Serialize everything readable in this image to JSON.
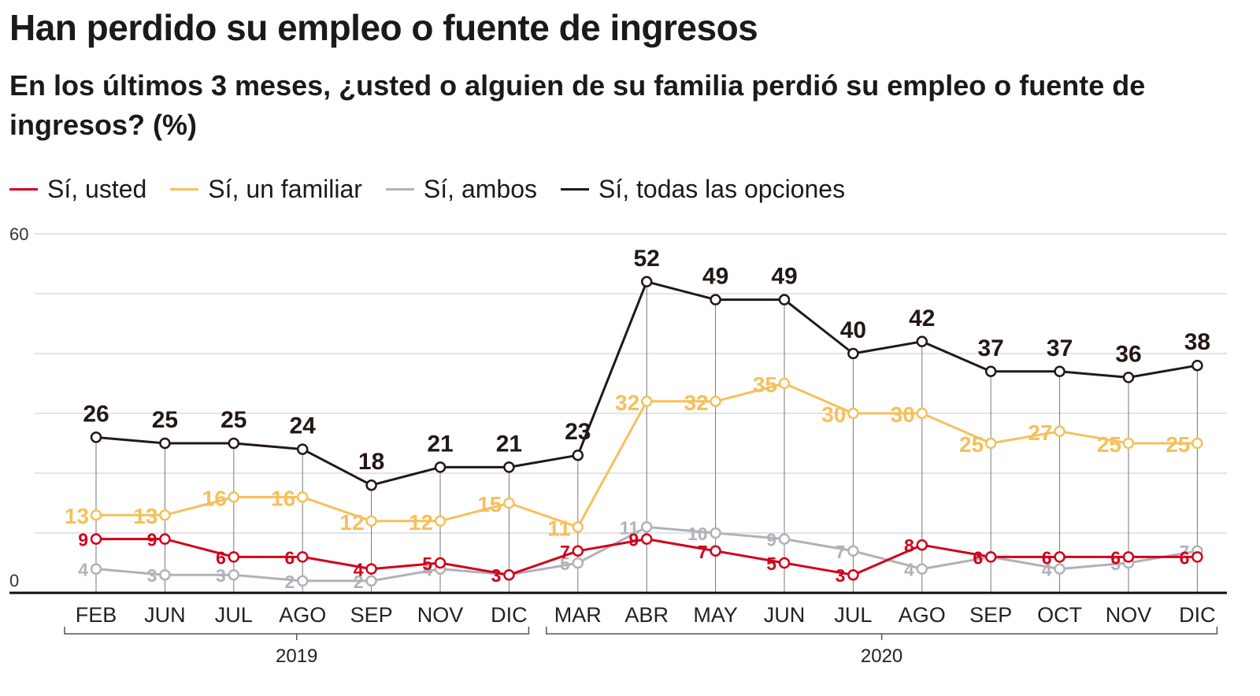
{
  "title": "Han perdido su empleo o fuente de ingresos",
  "subtitle": "En los últimos 3 meses, ¿usted o alguien de su familia perdió su empleo o fuente de ingresos?  (%)",
  "legend": [
    {
      "label": "Sí, usted",
      "color": "#d0021b"
    },
    {
      "label": "Sí, un familiar",
      "color": "#f5c05c"
    },
    {
      "label": "Sí, ambos",
      "color": "#b1b1b9"
    },
    {
      "label": "Sí, todas las opciones",
      "color": "#231815"
    }
  ],
  "chart_data": {
    "type": "line",
    "title": "Han perdido su empleo o fuente de ingresos",
    "subtitle": "En los últimos 3 meses, ¿usted o alguien de su familia perdió su empleo o fuente de ingresos?  (%)",
    "categories": [
      "FEB",
      "JUN",
      "JUL",
      "AGO",
      "SEP",
      "NOV",
      "DIC",
      "MAR",
      "ABR",
      "MAY",
      "JUN",
      "JUL",
      "AGO",
      "SEP",
      "OCT",
      "NOV",
      "DIC"
    ],
    "year_groups": [
      {
        "label": "2019",
        "start": 0,
        "end": 6
      },
      {
        "label": "2020",
        "start": 7,
        "end": 16
      }
    ],
    "ylim": [
      0,
      60
    ],
    "yticks": [
      0,
      10,
      20,
      30,
      40,
      50,
      60
    ],
    "ytick_labels": [
      "0",
      "",
      "",
      "",
      "",
      "",
      "60"
    ],
    "grid": true,
    "legend_position": "top-left",
    "series": [
      {
        "name": "Sí, todas las opciones",
        "color": "#231815",
        "values": [
          26,
          25,
          25,
          24,
          18,
          21,
          21,
          23,
          52,
          49,
          49,
          40,
          42,
          37,
          37,
          36,
          38
        ]
      },
      {
        "name": "Sí, un familiar",
        "color": "#f5c05c",
        "values": [
          13,
          13,
          16,
          16,
          12,
          12,
          15,
          11,
          32,
          32,
          35,
          30,
          30,
          25,
          27,
          25,
          25
        ]
      },
      {
        "name": "Sí, ambos",
        "color": "#b1b1b9",
        "values": [
          4,
          3,
          3,
          2,
          2,
          4,
          3,
          5,
          11,
          10,
          9,
          7,
          4,
          6,
          4,
          5,
          7
        ]
      },
      {
        "name": "Sí, usted",
        "color": "#d0021b",
        "values": [
          9,
          9,
          6,
          6,
          4,
          5,
          3,
          7,
          9,
          7,
          5,
          3,
          8,
          6,
          6,
          6,
          6
        ]
      }
    ]
  }
}
